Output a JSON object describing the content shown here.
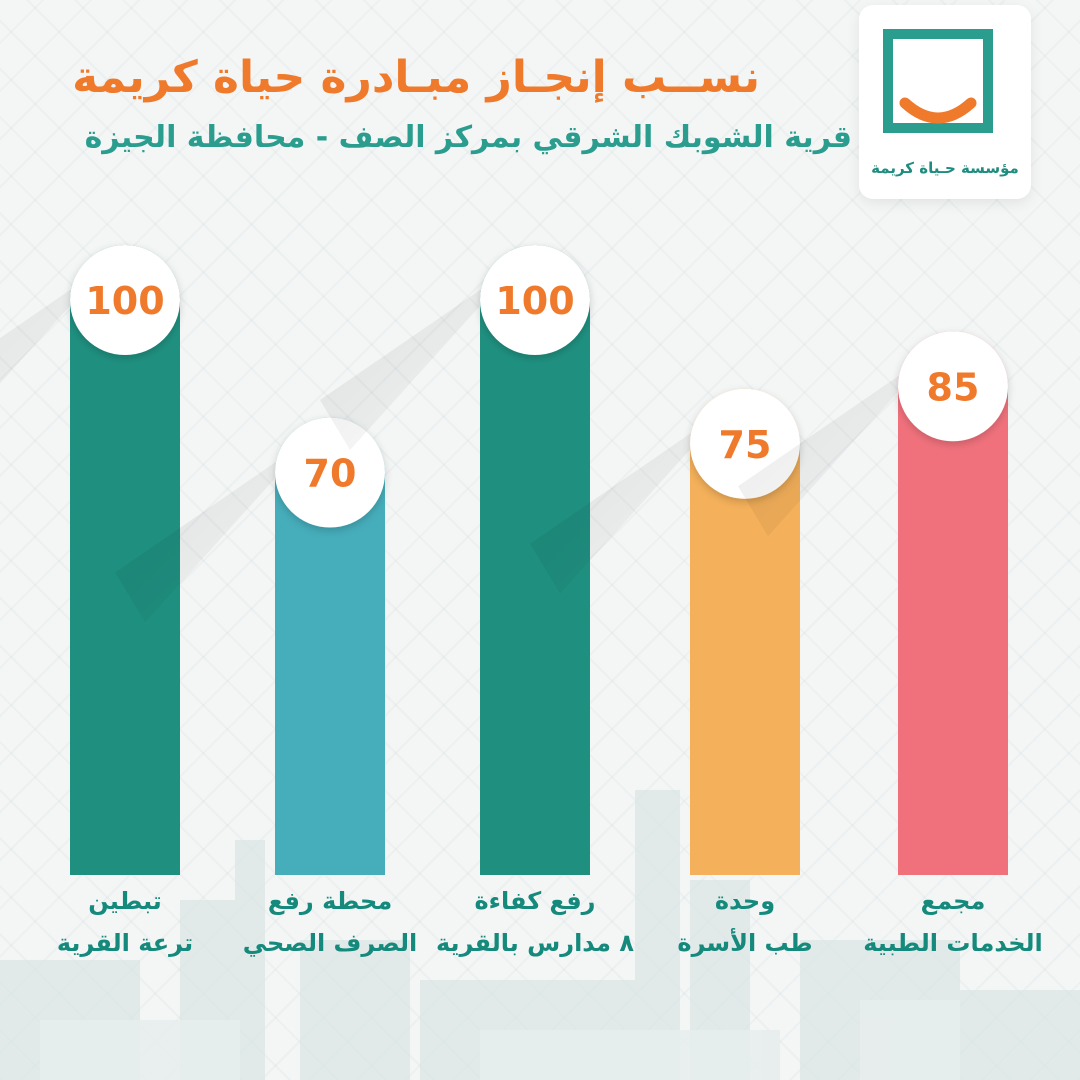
{
  "header": {
    "title": "نســب إنجـاز مبـادرة حياة كريمة",
    "subtitle": "قرية الشوبك الشرقي بمركز الصف -   محافظة الجيزة"
  },
  "logo": {
    "text": "مؤسسة حـياة كريمة"
  },
  "colors": {
    "teal_dark": "#1f9080",
    "teal_light": "#46adbb",
    "orange": "#f4b05a",
    "pink": "#f0717c",
    "title_orange": "#f07a2b",
    "subtitle_teal": "#2a9d8f"
  },
  "chart_data": {
    "type": "bar",
    "ylim": [
      0,
      100
    ],
    "grid": false,
    "categories": [
      "تبطين ترعة القرية",
      "محطة رفع الصرف الصحي",
      "رفع كفاءة ٨ مدارس بالقرية",
      "وحدة طب الأسرة",
      "مجمع الخدمات الطبية"
    ],
    "values": [
      100,
      70,
      100,
      75,
      85
    ],
    "data_labels": [
      "100",
      "70",
      "100",
      "75",
      "85"
    ],
    "bar_colors": [
      "#1f9080",
      "#46adbb",
      "#1f9080",
      "#f4b05a",
      "#f0717c"
    ],
    "labels": [
      {
        "line1": "تبطين",
        "line2": "ترعة القرية"
      },
      {
        "line1": "محطة رفع",
        "line2": "الصرف الصحي"
      },
      {
        "line1": "رفع كفاءة",
        "line2": "٨ مدارس بالقرية"
      },
      {
        "line1": "وحدة",
        "line2": "طب الأسرة"
      },
      {
        "line1": "مجمع",
        "line2": "الخدمات الطبية"
      }
    ]
  }
}
